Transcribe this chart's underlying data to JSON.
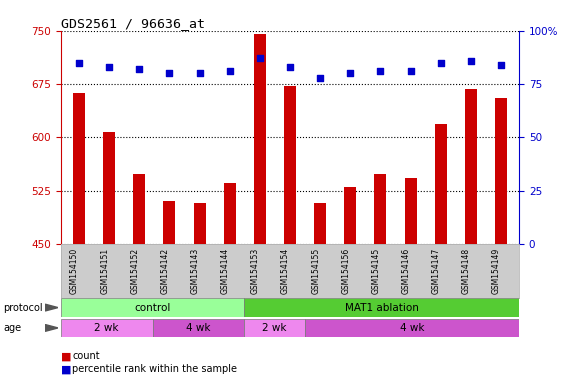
{
  "title": "GDS2561 / 96636_at",
  "samples": [
    "GSM154150",
    "GSM154151",
    "GSM154152",
    "GSM154142",
    "GSM154143",
    "GSM154144",
    "GSM154153",
    "GSM154154",
    "GSM154155",
    "GSM154156",
    "GSM154145",
    "GSM154146",
    "GSM154147",
    "GSM154148",
    "GSM154149"
  ],
  "count_values": [
    662,
    607,
    548,
    510,
    508,
    535,
    745,
    672,
    508,
    530,
    548,
    543,
    618,
    668,
    655
  ],
  "percentile_values": [
    85,
    83,
    82,
    80,
    80,
    81,
    87,
    83,
    78,
    80,
    81,
    81,
    85,
    86,
    84
  ],
  "ylim_left": [
    450,
    750
  ],
  "ylim_right": [
    0,
    100
  ],
  "yticks_left": [
    450,
    525,
    600,
    675,
    750
  ],
  "yticks_right": [
    0,
    25,
    50,
    75,
    100
  ],
  "bar_color": "#cc0000",
  "dot_color": "#0000cc",
  "bg_color": "#ffffff",
  "protocol_groups": [
    {
      "label": "control",
      "start": 0,
      "end": 6,
      "color": "#99ff99"
    },
    {
      "label": "MAT1 ablation",
      "start": 6,
      "end": 15,
      "color": "#55cc33"
    }
  ],
  "age_groups": [
    {
      "label": "2 wk",
      "start": 0,
      "end": 3,
      "color": "#ee88ee"
    },
    {
      "label": "4 wk",
      "start": 3,
      "end": 6,
      "color": "#cc55cc"
    },
    {
      "label": "2 wk",
      "start": 6,
      "end": 8,
      "color": "#ee88ee"
    },
    {
      "label": "4 wk",
      "start": 8,
      "end": 15,
      "color": "#cc55cc"
    }
  ],
  "left_axis_color": "#cc0000",
  "right_axis_color": "#0000cc",
  "ytick_labels_right": [
    "0",
    "25",
    "50",
    "75",
    "100%"
  ]
}
